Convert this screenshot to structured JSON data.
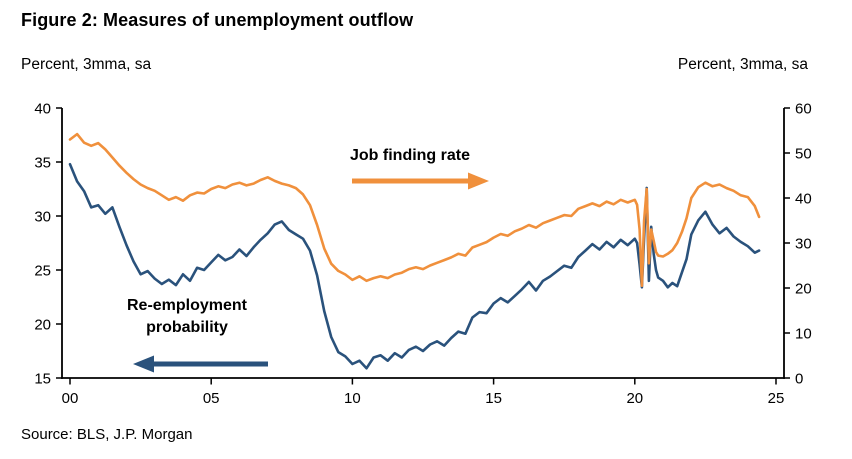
{
  "chart_data": {
    "type": "line",
    "title": "Figure 2: Measures of unemployment outflow",
    "source": "Source: BLS, J.P. Morgan",
    "x_axis": {
      "min": 2000,
      "max": 2025,
      "tick_labels": [
        "00",
        "05",
        "10",
        "15",
        "20",
        "25"
      ],
      "tick_values": [
        2000,
        2005,
        2010,
        2015,
        2020,
        2025
      ]
    },
    "left_axis": {
      "label": "Percent, 3mma, sa",
      "min": 15,
      "max": 40,
      "ticks": [
        15,
        20,
        25,
        30,
        35,
        40
      ]
    },
    "right_axis": {
      "label": "Percent, 3mma, sa",
      "min": 0,
      "max": 60,
      "ticks": [
        0,
        10,
        20,
        30,
        40,
        50,
        60
      ]
    },
    "annotations": {
      "job_finding": {
        "label": "Job finding rate",
        "arrow_direction": "right"
      },
      "reemployment": {
        "line1": "Re-employment",
        "line2": "probability",
        "arrow_direction": "left"
      }
    },
    "x": [
      2000,
      2000.25,
      2000.5,
      2000.75,
      2001,
      2001.25,
      2001.5,
      2001.75,
      2002,
      2002.25,
      2002.5,
      2002.75,
      2003,
      2003.25,
      2003.5,
      2003.75,
      2004,
      2004.25,
      2004.5,
      2004.75,
      2005,
      2005.25,
      2005.5,
      2005.75,
      2006,
      2006.25,
      2006.5,
      2006.75,
      2007,
      2007.25,
      2007.5,
      2007.75,
      2008,
      2008.25,
      2008.5,
      2008.75,
      2009,
      2009.25,
      2009.5,
      2009.75,
      2010,
      2010.25,
      2010.5,
      2010.75,
      2011,
      2011.25,
      2011.5,
      2011.75,
      2012,
      2012.25,
      2012.5,
      2012.75,
      2013,
      2013.25,
      2013.5,
      2013.75,
      2014,
      2014.25,
      2014.5,
      2014.75,
      2015,
      2015.25,
      2015.5,
      2015.75,
      2016,
      2016.25,
      2016.5,
      2016.75,
      2017,
      2017.25,
      2017.5,
      2017.75,
      2018,
      2018.25,
      2018.5,
      2018.75,
      2019,
      2019.25,
      2019.5,
      2019.75,
      2020,
      2020.08,
      2020.17,
      2020.25,
      2020.33,
      2020.42,
      2020.5,
      2020.58,
      2020.67,
      2020.75,
      2020.83,
      2021,
      2021.17,
      2021.33,
      2021.5,
      2021.67,
      2021.83,
      2022,
      2022.25,
      2022.5,
      2022.75,
      2023,
      2023.25,
      2023.5,
      2023.75,
      2024,
      2024.25,
      2024.4
    ],
    "series": [
      {
        "name": "Job finding rate",
        "axis": "right",
        "color": "#F0903C",
        "y": [
          53.0,
          54.2,
          52.3,
          51.6,
          52.2,
          50.8,
          49.0,
          47.2,
          45.6,
          44.2,
          43.0,
          42.2,
          41.6,
          40.6,
          39.6,
          40.2,
          39.4,
          40.6,
          41.2,
          41.0,
          42.0,
          42.6,
          42.2,
          43.0,
          43.4,
          42.8,
          43.2,
          44.0,
          44.6,
          43.8,
          43.2,
          42.8,
          42.2,
          40.8,
          38.4,
          34.0,
          28.8,
          25.4,
          23.8,
          23.0,
          21.8,
          22.6,
          21.6,
          22.2,
          22.6,
          22.2,
          23.0,
          23.4,
          24.2,
          24.6,
          24.2,
          25.0,
          25.6,
          26.2,
          26.8,
          27.6,
          27.2,
          29.0,
          29.6,
          30.2,
          31.2,
          32.0,
          31.6,
          32.6,
          33.2,
          34.0,
          33.4,
          34.4,
          35.0,
          35.6,
          36.2,
          36.0,
          37.6,
          38.2,
          38.8,
          38.2,
          39.2,
          38.6,
          39.6,
          39.0,
          39.6,
          38.5,
          33.0,
          20.5,
          35.0,
          42.0,
          25.5,
          33.0,
          30.5,
          28.0,
          27.2,
          27.0,
          27.6,
          28.4,
          30.0,
          32.5,
          35.5,
          40.0,
          42.4,
          43.4,
          42.6,
          43.0,
          42.2,
          41.6,
          40.6,
          40.2,
          38.2,
          35.8
        ]
      },
      {
        "name": "Re-employment probability",
        "axis": "left",
        "color": "#2A527C",
        "y": [
          34.8,
          33.2,
          32.3,
          30.8,
          31.0,
          30.2,
          30.8,
          29.0,
          27.3,
          25.8,
          24.6,
          24.9,
          24.2,
          23.7,
          24.1,
          23.6,
          24.6,
          24.0,
          25.2,
          25.0,
          25.7,
          26.4,
          25.9,
          26.2,
          26.9,
          26.3,
          27.1,
          27.8,
          28.4,
          29.2,
          29.5,
          28.7,
          28.3,
          27.9,
          26.8,
          24.5,
          21.2,
          18.8,
          17.4,
          17.0,
          16.3,
          16.6,
          15.9,
          16.9,
          17.1,
          16.6,
          17.3,
          16.9,
          17.6,
          17.9,
          17.5,
          18.1,
          18.4,
          18.0,
          18.7,
          19.3,
          19.1,
          20.6,
          21.1,
          21.0,
          21.9,
          22.4,
          22.0,
          22.6,
          23.2,
          23.9,
          23.1,
          24.0,
          24.4,
          24.9,
          25.4,
          25.2,
          26.2,
          26.8,
          27.4,
          26.9,
          27.6,
          27.1,
          27.8,
          27.3,
          27.9,
          27.5,
          25.5,
          23.4,
          28.0,
          32.6,
          24.0,
          29.0,
          26.5,
          25.0,
          24.3,
          24.0,
          23.4,
          23.8,
          23.5,
          24.8,
          26.0,
          28.3,
          29.6,
          30.4,
          29.2,
          28.4,
          28.9,
          28.1,
          27.6,
          27.2,
          26.6,
          26.8
        ]
      }
    ]
  }
}
